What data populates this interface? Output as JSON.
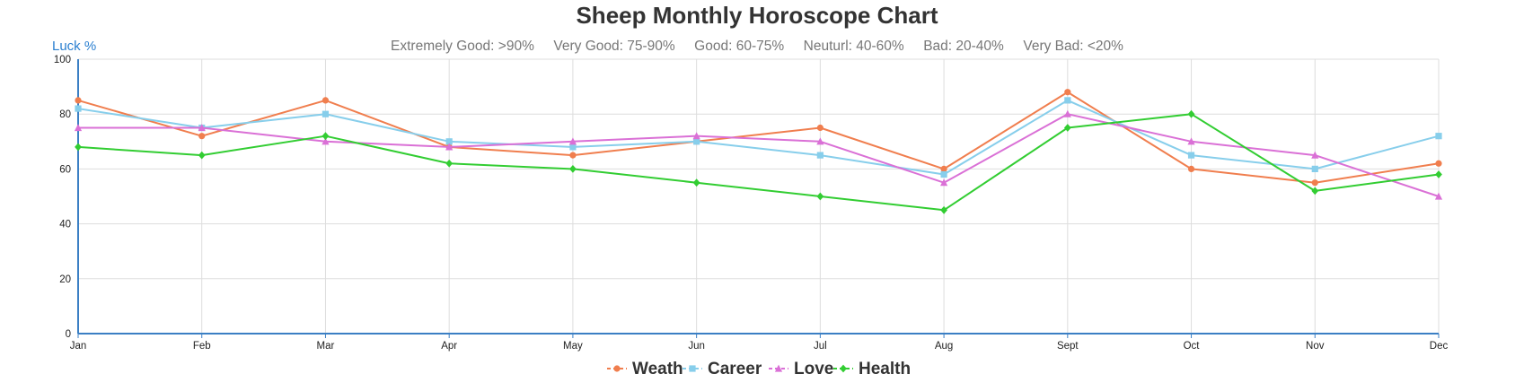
{
  "chart_data": {
    "type": "line",
    "title": "Sheep Monthly Horoscope Chart",
    "subtitle": "Extremely Good: >90%     Very Good: 75-90%     Good: 60-75%     Neuturl: 40-60%     Bad: 20-40%     Very Bad: <20%",
    "ylabel": "Luck %",
    "xlabel": "",
    "categories": [
      "Jan",
      "Feb",
      "Mar",
      "Apr",
      "May",
      "Jun",
      "Jul",
      "Aug",
      "Sept",
      "Oct",
      "Nov",
      "Dec"
    ],
    "ylim": [
      0,
      100
    ],
    "yticks": [
      0,
      20,
      40,
      60,
      80,
      100
    ],
    "grid": true,
    "legend_position": "bottom",
    "series": [
      {
        "name": "Weath",
        "color": "#f07e4e",
        "marker": "circle",
        "values": [
          85,
          72,
          85,
          68,
          65,
          70,
          75,
          60,
          88,
          60,
          55,
          62
        ]
      },
      {
        "name": "Career",
        "color": "#87ceeb",
        "marker": "square",
        "values": [
          82,
          75,
          80,
          70,
          68,
          70,
          65,
          58,
          85,
          65,
          60,
          72
        ]
      },
      {
        "name": "Love",
        "color": "#da70d6",
        "marker": "triangle",
        "values": [
          75,
          75,
          70,
          68,
          70,
          72,
          70,
          55,
          80,
          70,
          65,
          50
        ]
      },
      {
        "name": "Health",
        "color": "#32cd32",
        "marker": "diamond",
        "values": [
          68,
          65,
          72,
          62,
          60,
          55,
          50,
          45,
          75,
          80,
          52,
          58
        ]
      }
    ]
  },
  "colors": {
    "axis": "#3b7fc4",
    "grid": "#dddddd"
  }
}
